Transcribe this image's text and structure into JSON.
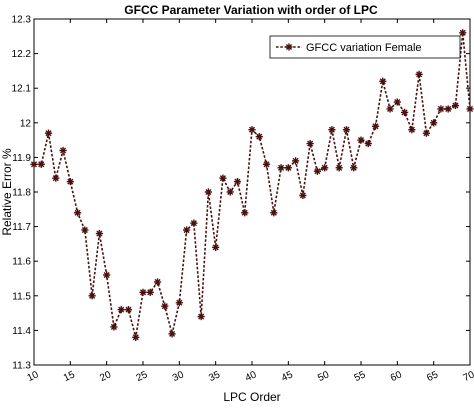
{
  "chart_data": {
    "type": "line",
    "title": "GFCC Parameter Variation with order of LPC",
    "xlabel": "LPC Order",
    "ylabel": "Relative Error %",
    "xlim": [
      10,
      70
    ],
    "ylim": [
      11.3,
      12.3
    ],
    "xticks": [
      10,
      15,
      20,
      25,
      30,
      35,
      40,
      45,
      50,
      55,
      60,
      65,
      70
    ],
    "yticks": [
      11.3,
      11.4,
      11.5,
      11.6,
      11.7,
      11.8,
      11.9,
      12,
      12.1,
      12.2,
      12.3
    ],
    "ytick_labels": [
      "11.3",
      "11.4",
      "11.5",
      "11.6",
      "11.7",
      "11.8",
      "11.9",
      "12",
      "12.1",
      "12.2",
      "12.3"
    ],
    "legend_position": "top-right",
    "grid": false,
    "series_color": "#4a1010",
    "series": [
      {
        "name": "GFCC variation Female",
        "x": [
          10,
          11,
          12,
          13,
          14,
          15,
          16,
          17,
          18,
          19,
          20,
          21,
          22,
          23,
          24,
          25,
          26,
          27,
          28,
          29,
          30,
          31,
          32,
          33,
          34,
          35,
          36,
          37,
          38,
          39,
          40,
          41,
          42,
          43,
          44,
          45,
          46,
          47,
          48,
          49,
          50,
          51,
          52,
          53,
          54,
          55,
          56,
          57,
          58,
          59,
          60,
          61,
          62,
          63,
          64,
          65,
          66,
          67,
          68,
          69,
          70
        ],
        "values": [
          11.88,
          11.88,
          11.97,
          11.84,
          11.92,
          11.83,
          11.74,
          11.69,
          11.5,
          11.68,
          11.56,
          11.41,
          11.46,
          11.46,
          11.38,
          11.51,
          11.51,
          11.54,
          11.47,
          11.39,
          11.48,
          11.69,
          11.71,
          11.44,
          11.8,
          11.64,
          11.84,
          11.8,
          11.83,
          11.74,
          11.98,
          11.96,
          11.88,
          11.74,
          11.87,
          11.87,
          11.89,
          11.79,
          11.94,
          11.86,
          11.87,
          11.98,
          11.87,
          11.98,
          11.87,
          11.95,
          11.94,
          11.99,
          12.12,
          12.04,
          12.06,
          12.03,
          11.98,
          12.14,
          11.97,
          12.0,
          12.04,
          12.04,
          12.05,
          12.26,
          12.04
        ]
      }
    ]
  }
}
